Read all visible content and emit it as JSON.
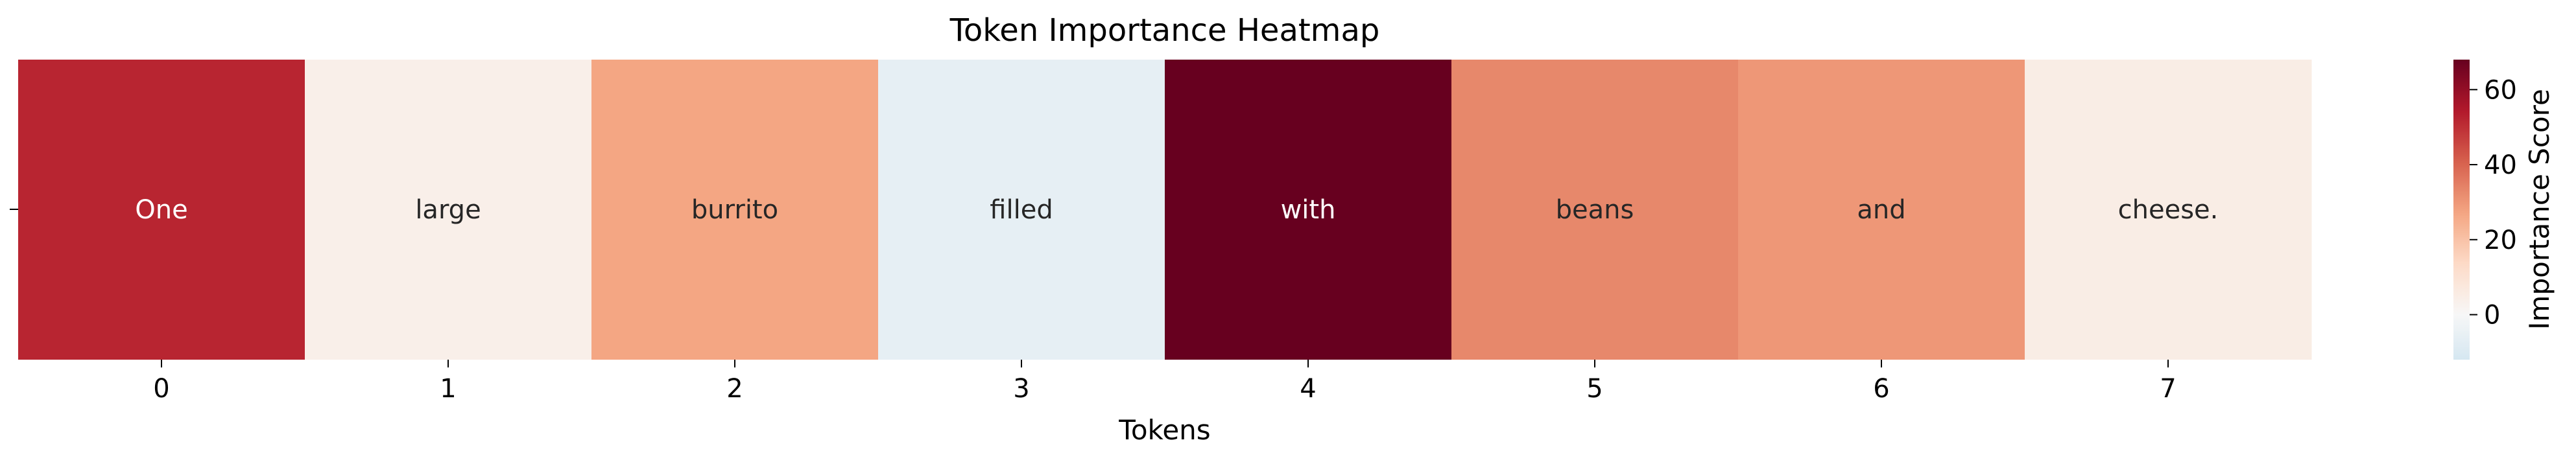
{
  "chart_data": {
    "type": "heatmap",
    "title": "Token Importance Heatmap",
    "xlabel": "Tokens",
    "ylabel": "",
    "x": [
      0,
      1,
      2,
      3,
      4,
      5,
      6,
      7
    ],
    "x_tick_labels": [
      "0",
      "1",
      "2",
      "3",
      "4",
      "5",
      "6",
      "7"
    ],
    "tokens": [
      "One",
      "large",
      "burrito",
      "filled",
      "with",
      "beans",
      "and",
      "cheese."
    ],
    "values": [
      52,
      4,
      27,
      -6,
      68,
      33,
      30,
      5
    ],
    "colorbar": {
      "label": "Importance Score",
      "range": [
        -12,
        68
      ],
      "ticks": [
        0,
        20,
        40,
        60
      ],
      "tick_labels": [
        "0",
        "20",
        "40",
        "60"
      ],
      "colormap": "RdBu_r",
      "center": 0
    },
    "grid": false
  }
}
